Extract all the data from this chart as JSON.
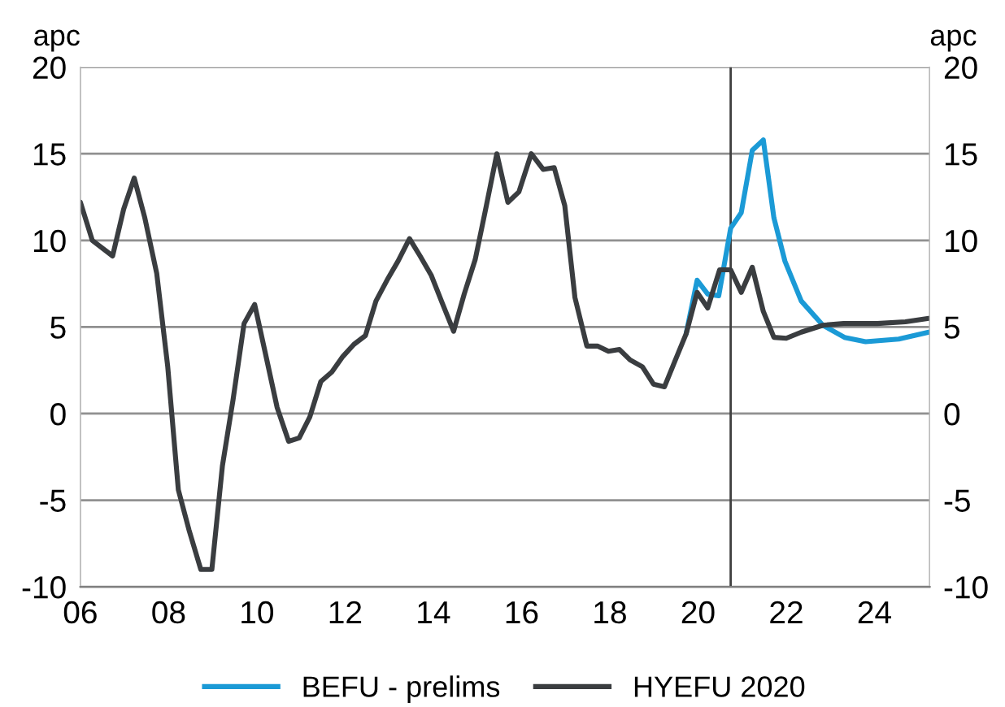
{
  "chart_data": {
    "type": "line",
    "ylabel": "apc",
    "y2label": "apc",
    "xlim": [
      6,
      25.25
    ],
    "xticks": [
      {
        "value": 6,
        "label": "06"
      },
      {
        "value": 8,
        "label": "08"
      },
      10,
      12,
      14,
      16,
      18,
      20,
      22,
      24
    ],
    "ylim": [
      -10,
      20
    ],
    "yticks": [
      -10,
      -5,
      0,
      5,
      10,
      15,
      20
    ],
    "y2lim": [
      -10,
      20
    ],
    "y2ticks": [
      -10,
      -5,
      0,
      5,
      10,
      15,
      20
    ],
    "grid": "y",
    "legend": "bottom",
    "line_style": "solid",
    "marker": "none",
    "ref_lines": [
      {
        "axis": "x",
        "value": 20.74,
        "color": "#404040"
      }
    ],
    "series": [
      {
        "name": "BEFU - prelims",
        "color": "#1b9ad6",
        "x": [
          19.73,
          19.98,
          20.22,
          20.47,
          20.74,
          20.98,
          21.23,
          21.48,
          21.72,
          21.97,
          22.34,
          22.83,
          23.32,
          23.8,
          24.55,
          25.23
        ],
        "values": [
          4.6,
          7.7,
          6.9,
          6.8,
          10.7,
          11.6,
          15.2,
          15.8,
          11.3,
          8.8,
          6.5,
          5.1,
          4.4,
          4.15,
          4.3,
          4.7
        ]
      },
      {
        "name": "HYEFU 2020",
        "color": "#3a3d40",
        "x": [
          6.0,
          6.27,
          6.73,
          6.98,
          7.22,
          7.46,
          7.73,
          7.98,
          8.22,
          8.46,
          8.73,
          8.98,
          9.22,
          9.46,
          9.71,
          9.95,
          10.2,
          10.46,
          10.72,
          10.96,
          11.2,
          11.45,
          11.7,
          11.95,
          12.2,
          12.46,
          12.7,
          12.95,
          13.2,
          13.46,
          13.7,
          13.95,
          14.2,
          14.46,
          14.7,
          14.95,
          15.17,
          15.44,
          15.69,
          15.94,
          16.22,
          16.49,
          16.74,
          16.98,
          17.21,
          17.48,
          17.72,
          17.97,
          18.22,
          18.46,
          18.74,
          18.99,
          19.24,
          19.48,
          19.73,
          19.98,
          20.22,
          20.49,
          20.74,
          20.98,
          21.23,
          21.48,
          21.72,
          22.0,
          22.34,
          22.83,
          23.3,
          24.06,
          24.7,
          25.23
        ],
        "values": [
          12.2,
          10.0,
          9.1,
          11.8,
          13.6,
          11.3,
          8.1,
          2.7,
          -4.4,
          -6.7,
          -9.0,
          -9.0,
          -3.0,
          0.8,
          5.2,
          6.3,
          3.4,
          0.35,
          -1.6,
          -1.4,
          -0.2,
          1.85,
          2.4,
          3.3,
          4.0,
          4.5,
          6.5,
          7.7,
          8.8,
          10.1,
          9.1,
          8.0,
          6.4,
          4.75,
          6.9,
          8.9,
          11.6,
          15.0,
          12.2,
          12.8,
          15.0,
          14.1,
          14.2,
          12.0,
          6.7,
          3.9,
          3.9,
          3.6,
          3.7,
          3.1,
          2.7,
          1.7,
          1.55,
          3.05,
          4.6,
          7.0,
          6.1,
          8.3,
          8.3,
          7.0,
          8.45,
          5.9,
          4.4,
          4.35,
          4.7,
          5.1,
          5.2,
          5.2,
          5.3,
          5.5
        ]
      }
    ]
  }
}
